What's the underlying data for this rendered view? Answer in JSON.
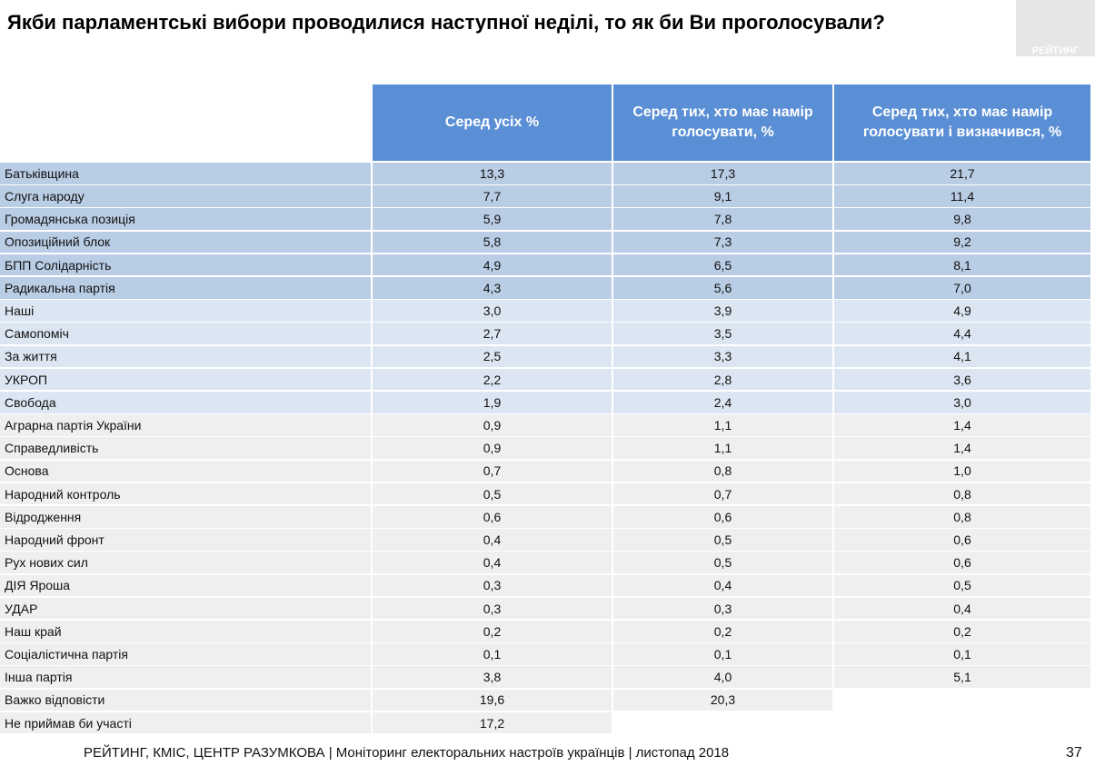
{
  "header": {
    "title": "Якби парламентські вибори проводилися наступної неділі, то як би Ви проголосували?",
    "logo": "РЕЙТИНГ"
  },
  "table": {
    "columns": [
      "Серед усіх %",
      "Серед тих, хто має намір голосувати, %",
      "Серед тих, хто має намір голосувати і визначився, %"
    ],
    "rows": [
      [
        "Батьківщина",
        "13,3",
        "17,3",
        "21,7"
      ],
      [
        "Слуга народу",
        "7,7",
        "9,1",
        "11,4"
      ],
      [
        "Громадянська позиція",
        "5,9",
        "7,8",
        "9,8"
      ],
      [
        "Опозиційний блок",
        "5,8",
        "7,3",
        "9,2"
      ],
      [
        "БПП Солідарність",
        "4,9",
        "6,5",
        "8,1"
      ],
      [
        "Радикальна партія",
        "4,3",
        "5,6",
        "7,0"
      ],
      [
        "Наші",
        "3,0",
        "3,9",
        "4,9"
      ],
      [
        "Самопоміч",
        "2,7",
        "3,5",
        "4,4"
      ],
      [
        "За життя",
        "2,5",
        "3,3",
        "4,1"
      ],
      [
        "УКРОП",
        "2,2",
        "2,8",
        "3,6"
      ],
      [
        "Свобода",
        "1,9",
        "2,4",
        "3,0"
      ],
      [
        "Аграрна партія України",
        "0,9",
        "1,1",
        "1,4"
      ],
      [
        "Справедливість",
        "0,9",
        "1,1",
        "1,4"
      ],
      [
        "Основа",
        "0,7",
        "0,8",
        "1,0"
      ],
      [
        "Народний контроль",
        "0,5",
        "0,7",
        "0,8"
      ],
      [
        "Відродження",
        "0,6",
        "0,6",
        "0,8"
      ],
      [
        "Народний фронт",
        "0,4",
        "0,5",
        "0,6"
      ],
      [
        "Рух нових сил",
        "0,4",
        "0,5",
        "0,6"
      ],
      [
        "ДІЯ Яроша",
        "0,3",
        "0,4",
        "0,5"
      ],
      [
        "УДАР",
        "0,3",
        "0,3",
        "0,4"
      ],
      [
        "Наш край",
        "0,2",
        "0,2",
        "0,2"
      ],
      [
        "Соціалістична партія",
        "0,1",
        "0,1",
        "0,1"
      ],
      [
        "Інша партія",
        "3,8",
        "4,0",
        "5,1"
      ],
      [
        "Важко відповісти",
        "19,6",
        "20,3"
      ],
      [
        "Не приймав би участі",
        "17,2"
      ]
    ]
  },
  "footer": {
    "source": "РЕЙТИНГ, КМІС, ЦЕНТР РАЗУМКОВА |  Моніторинг електоральних настроїв українців | листопад 2018",
    "page": "37"
  }
}
